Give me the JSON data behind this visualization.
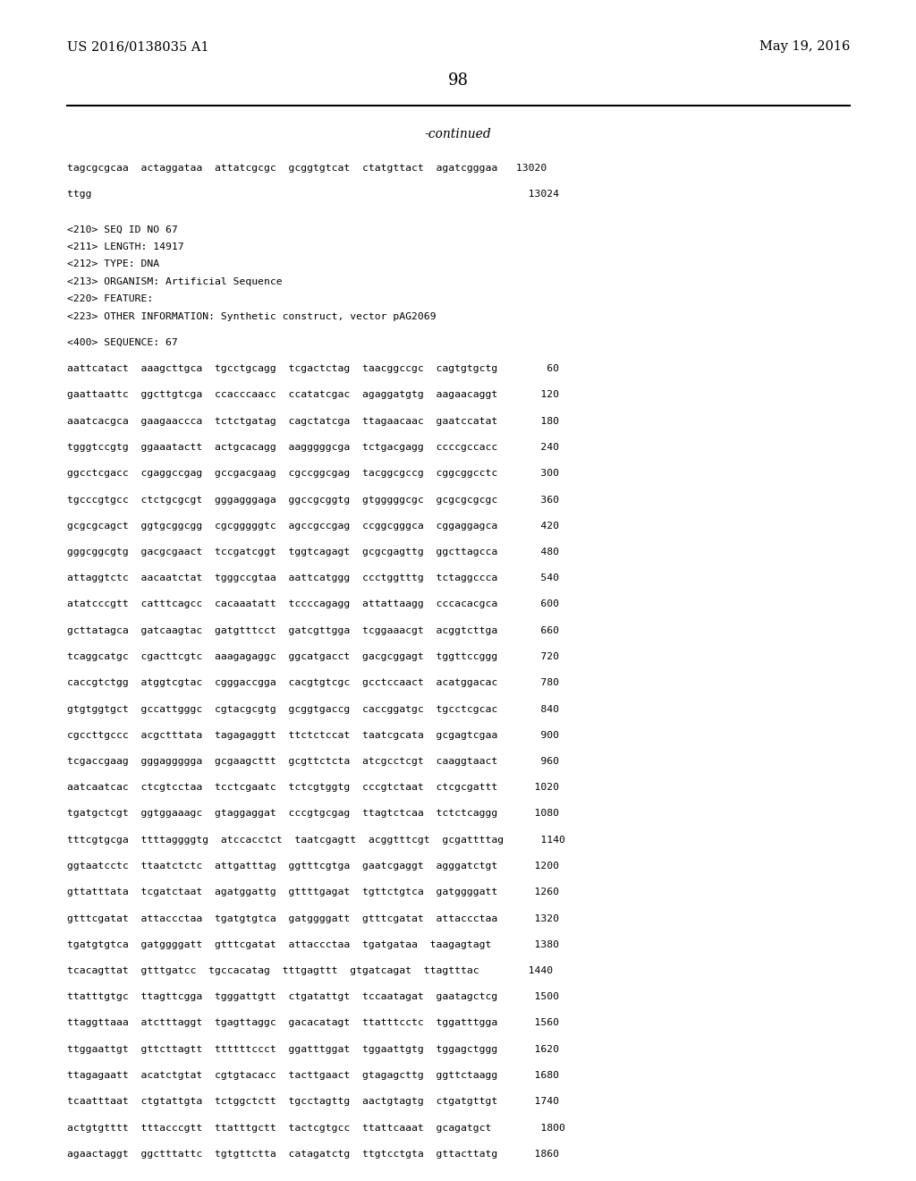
{
  "left_header": "US 2016/0138035 A1",
  "right_header": "May 19, 2016",
  "page_number": "98",
  "continued_text": "-continued",
  "background_color": "#ffffff",
  "sequence_lines": [
    "tagcgcgcaa  actaggataa  attatcgcgc  gcggtgtcat  ctatgttact  agatcgggaa   13020",
    "",
    "ttgg                                                                       13024",
    "",
    "",
    "<210> SEQ ID NO 67",
    "<211> LENGTH: 14917",
    "<212> TYPE: DNA",
    "<213> ORGANISM: Artificial Sequence",
    "<220> FEATURE:",
    "<223> OTHER INFORMATION: Synthetic construct, vector pAG2069",
    "",
    "<400> SEQUENCE: 67",
    "",
    "aattcatact  aaagcttgca  tgcctgcagg  tcgactctag  taacggccgc  cagtgtgctg        60",
    "",
    "gaattaattc  ggcttgtcga  ccacccaacc  ccatatcgac  agaggatgtg  aagaacaggt       120",
    "",
    "aaatcacgca  gaagaaccca  tctctgatag  cagctatcga  ttagaacaac  gaatccatat       180",
    "",
    "tgggtccgtg  ggaaatactt  actgcacagg  aagggggcga  tctgacgagg  ccccgccacc       240",
    "",
    "ggcctcgacc  cgaggccgag  gccgacgaag  cgccggcgag  tacggcgccg  cggcggcctc       300",
    "",
    "tgcccgtgcc  ctctgcgcgt  gggagggaga  ggccgcggtg  gtgggggcgc  gcgcgcgcgc       360",
    "",
    "gcgcgcagct  ggtgcggcgg  cgcgggggtc  agccgccgag  ccggcgggca  cggaggagca       420",
    "",
    "gggcggcgtg  gacgcgaact  tccgatcggt  tggtcagagt  gcgcgagttg  ggcttagcca       480",
    "",
    "attaggtctc  aacaatctat  tgggccgtaa  aattcatggg  ccctggtttg  tctaggccca       540",
    "",
    "atatcccgtt  catttcagcc  cacaaatatt  tccccagagg  attattaagg  cccacacgca       600",
    "",
    "gcttatagca  gatcaagtac  gatgtttcct  gatcgttgga  tcggaaacgt  acggtcttga       660",
    "",
    "tcaggcatgc  cgacttcgtc  aaagagaggc  ggcatgacct  gacgcggagt  tggttccggg       720",
    "",
    "caccgtctgg  atggtcgtac  cgggaccgga  cacgtgtcgc  gcctccaact  acatggacac       780",
    "",
    "gtgtggtgct  gccattgggc  cgtacgcgtg  gcggtgaccg  caccggatgc  tgcctcgcac       840",
    "",
    "cgccttgccc  acgctttata  tagagaggtt  ttctctccat  taatcgcata  gcgagtcgaa       900",
    "",
    "tcgaccgaag  gggaggggga  gcgaagcttt  gcgttctcta  atcgcctcgt  caaggtaact       960",
    "",
    "aatcaatcac  ctcgtcctaa  tcctcgaatc  tctcgtggtg  cccgtctaat  ctcgcgattt      1020",
    "",
    "tgatgctcgt  ggtggaaagc  gtaggaggat  cccgtgcgag  ttagtctcaa  tctctcaggg      1080",
    "",
    "tttcgtgcga  ttttaggggtg  atccacctct  taatcgagtt  acggtttcgt  gcgattttag      1140",
    "",
    "ggtaatcctc  ttaatctctc  attgatttag  ggtttcgtga  gaatcgaggt  agggatctgt      1200",
    "",
    "gttatttata  tcgatctaat  agatggattg  gttttgagat  tgttctgtca  gatggggatt      1260",
    "",
    "gtttcgatat  attaccctaa  tgatgtgtca  gatggggatt  gtttcgatat  attaccctaa      1320",
    "",
    "tgatgtgtca  gatggggatt  gtttcgatat  attaccctaa  tgatgataa  taagagtagt       1380",
    "",
    "tcacagttat  gtttgatcc  tgccacatag  tttgagttt  gtgatcagat  ttagtttac        1440",
    "",
    "ttatttgtgc  ttagttcgga  tgggattgtt  ctgatattgt  tccaatagat  gaatagctcg      1500",
    "",
    "ttaggttaaa  atctttaggt  tgagttaggc  gacacatagt  ttatttcctc  tggatttgga      1560",
    "",
    "ttggaattgt  gttcttagtt  ttttttccct  ggatttggat  tggaattgtg  tggagctggg      1620",
    "",
    "ttagagaatt  acatctgtat  cgtgtacacc  tacttgaact  gtagagcttg  ggttctaagg      1680",
    "",
    "tcaatttaat  ctgtattgta  tctggctctt  tgcctagttg  aactgtagtg  ctgatgttgt      1740",
    "",
    "actgtgtttt  tttacccgtt  ttatttgctt  tactcgtgcc  ttattcaaat  gcagatgct        1800",
    "",
    "agaactaggt  ggctttattc  tgtgttctta  catagatctg  ttgtcctgta  gttacttatg      1860"
  ]
}
